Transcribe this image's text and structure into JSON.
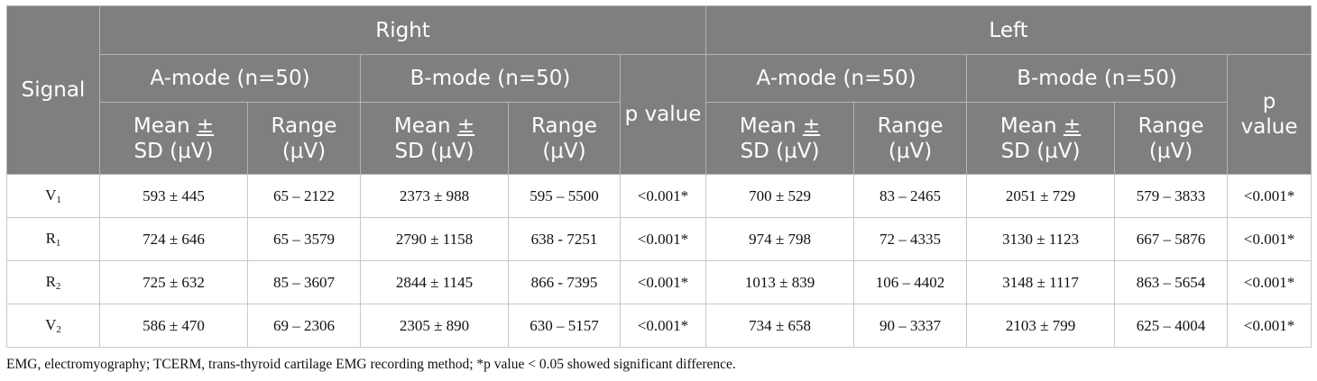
{
  "header": {
    "signal": "Signal",
    "sides": [
      "Right",
      "Left"
    ],
    "modes": [
      "A-mode (n=50)",
      "B-mode (n=50)"
    ],
    "p_value": "p value",
    "mean_sd_a": "Mean ",
    "mean_sd_pm": "±",
    "mean_sd_b": "SD (μV)",
    "range": "Range (μV)"
  },
  "rows": [
    {
      "signal": "V",
      "sub": "1",
      "right": [
        "593 ± 445",
        "65 – 2122",
        "2373 ± 988",
        "595 – 5500",
        "<0.001*"
      ],
      "left": [
        "700 ± 529",
        "83 – 2465",
        "2051 ± 729",
        "579 – 3833",
        "<0.001*"
      ]
    },
    {
      "signal": "R",
      "sub": "1",
      "right": [
        "724 ± 646",
        "65 – 3579",
        "2790 ± 1158",
        "638 - 7251",
        "<0.001*"
      ],
      "left": [
        "974 ± 798",
        "72 – 4335",
        "3130 ± 1123",
        "667 – 5876",
        "<0.001*"
      ]
    },
    {
      "signal": "R",
      "sub": "2",
      "right": [
        "725 ± 632",
        "85 – 3607",
        "2844 ± 1145",
        "866 - 7395",
        "<0.001*"
      ],
      "left": [
        "1013 ± 839",
        "106 – 4402",
        "3148 ± 1117",
        "863 – 5654",
        "<0.001*"
      ]
    },
    {
      "signal": "V",
      "sub": "2",
      "right": [
        "586 ± 470",
        "69 – 2306",
        "2305 ± 890",
        "630 – 5157",
        "<0.001*"
      ],
      "left": [
        "734 ± 658",
        "90 – 3337",
        "2103 ± 799",
        "625 – 4004",
        "<0.001*"
      ]
    }
  ],
  "footnote": "EMG, electromyography; TCERM, trans-thyroid cartilage EMG recording method; *p value < 0.05 showed significant difference."
}
